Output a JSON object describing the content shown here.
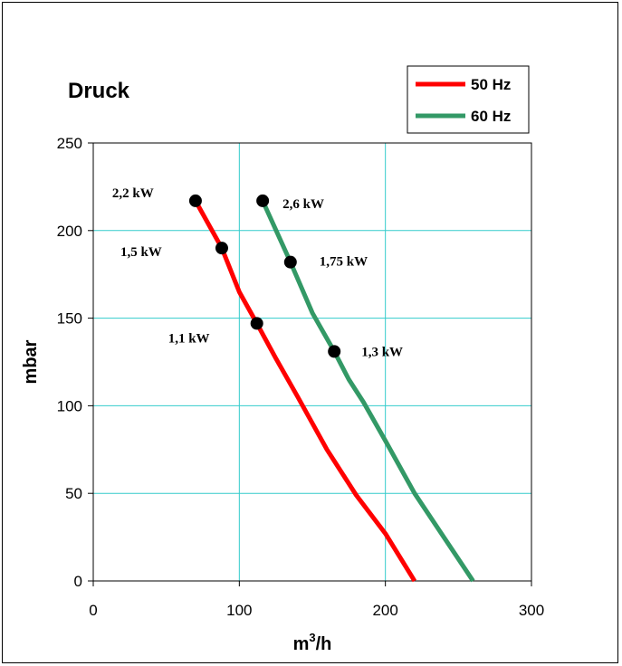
{
  "chart_data": {
    "type": "line",
    "title": "Druck",
    "xlabel_base": "m",
    "xlabel_sup": "3",
    "xlabel_tail": "/h",
    "ylabel": "mbar",
    "xlim": [
      0,
      300
    ],
    "ylim": [
      0,
      250
    ],
    "x_ticks": [
      "0",
      "100",
      "200",
      "300"
    ],
    "y_ticks": [
      "0",
      "50",
      "100",
      "150",
      "200",
      "250"
    ],
    "grid": true,
    "grid_color": "#33cccc",
    "legend_position": "top-right",
    "series": [
      {
        "name": "50 Hz",
        "color": "#ff0000",
        "x": [
          70,
          88,
          100,
          112,
          125,
          140,
          160,
          180,
          200,
          220
        ],
        "y": [
          217,
          190,
          165,
          147,
          127,
          105,
          75,
          49,
          27,
          0
        ]
      },
      {
        "name": "60 Hz",
        "color": "#339966",
        "x": [
          116,
          135,
          150,
          165,
          175,
          185,
          200,
          220,
          240,
          260
        ],
        "y": [
          217,
          182,
          153,
          131,
          115,
          102,
          80,
          50,
          25,
          0
        ]
      }
    ],
    "markers": [
      {
        "x": 70,
        "y": 217,
        "label": "2,2 kW"
      },
      {
        "x": 88,
        "y": 190,
        "label": "1,5 kW"
      },
      {
        "x": 112,
        "y": 147,
        "label": "1,1 kW"
      },
      {
        "x": 116,
        "y": 217,
        "label": "2,6 kW"
      },
      {
        "x": 135,
        "y": 182,
        "label": "1,75 kW"
      },
      {
        "x": 165,
        "y": 131,
        "label": "1,3 kW"
      }
    ]
  }
}
